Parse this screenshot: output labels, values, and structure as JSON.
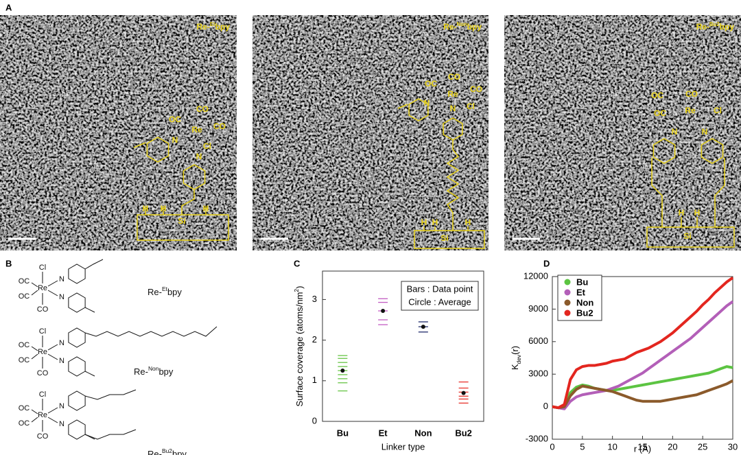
{
  "panel_labels": [
    "A",
    "B",
    "C",
    "D"
  ],
  "images": [
    {
      "name": {
        "prefix": "Re-",
        "sup": "Et",
        "suffix": "bpy"
      },
      "atoms": [
        "CO",
        "OC",
        "Re",
        "CO",
        "N",
        "Cl",
        "N",
        "H",
        "H",
        "H",
        "Si"
      ]
    },
    {
      "name": {
        "prefix": "Re-",
        "sup": "Non",
        "suffix": "bpy"
      },
      "atoms": [
        "CO",
        "OC",
        "Re",
        "CO",
        "N",
        "N",
        "Cl",
        "H",
        "H",
        "H",
        "Si"
      ]
    },
    {
      "name": {
        "prefix": "Re-",
        "sup": "Bu2",
        "suffix": "bpy"
      },
      "atoms": [
        "OC",
        "CO",
        "OC",
        "Re",
        "Cl",
        "N",
        "N",
        "H",
        "H",
        "Si"
      ]
    }
  ],
  "structures": [
    {
      "name": {
        "prefix": "Re-",
        "sup": "Et",
        "suffix": "bpy"
      },
      "atoms": [
        "Cl",
        "OC",
        "Re",
        "OC",
        "N",
        "N",
        "CO"
      ]
    },
    {
      "name": {
        "prefix": "Re-",
        "sup": "Non",
        "suffix": "bpy"
      },
      "atoms": [
        "Cl",
        "OC",
        "Re",
        "OC",
        "N",
        "N",
        "CO"
      ]
    },
    {
      "name": {
        "prefix": "Re-",
        "sup": "Bu2",
        "suffix": "bpy"
      },
      "atoms": [
        "Cl",
        "OC",
        "Re",
        "OC",
        "N",
        "N",
        "CO"
      ]
    }
  ],
  "chart_data": [
    {
      "type": "strip",
      "categories": [
        "Bu",
        "Et",
        "Non",
        "Bu2"
      ],
      "colors": [
        "#66c444",
        "#c25bc2",
        "#1f2a6b",
        "#e8322b"
      ],
      "data_points": [
        [
          0.75,
          0.95,
          1.05,
          1.15,
          1.25,
          1.35,
          1.45,
          1.55,
          1.62
        ],
        [
          2.38,
          2.5,
          2.72,
          2.93,
          3.02
        ],
        [
          2.2,
          2.33,
          2.45
        ],
        [
          0.45,
          0.55,
          0.62,
          0.72,
          0.82,
          0.97
        ]
      ],
      "averages": [
        1.25,
        2.72,
        2.33,
        0.7
      ],
      "ylim": [
        0,
        3.7
      ],
      "yticks": [
        0,
        1,
        2,
        3
      ],
      "ylabel": {
        "main": "Surface coverage (atoms/nm",
        "sup": "2",
        "rest": ")"
      },
      "xlabel": "Linker type",
      "legend_text": [
        "Bars : Data point",
        "Circle : Average"
      ]
    },
    {
      "type": "line",
      "x": [
        0,
        1,
        2,
        3,
        4,
        5,
        6,
        7,
        8,
        9,
        10,
        11,
        12,
        13,
        14,
        15,
        16,
        17,
        18,
        19,
        20,
        21,
        22,
        23,
        24,
        25,
        26,
        27,
        28,
        29,
        30
      ],
      "series": [
        {
          "name": "Bu",
          "color": "#5cc442",
          "values": [
            0,
            -100,
            100,
            1300,
            1800,
            2000,
            1900,
            1700,
            1600,
            1500,
            1500,
            1600,
            1700,
            1800,
            1900,
            2000,
            2100,
            2200,
            2300,
            2400,
            2500,
            2600,
            2700,
            2800,
            2900,
            3000,
            3100,
            3300,
            3500,
            3700,
            3600
          ]
        },
        {
          "name": "Et",
          "color": "#b35fb8",
          "values": [
            0,
            -100,
            -200,
            500,
            900,
            1100,
            1200,
            1300,
            1400,
            1500,
            1700,
            1900,
            2200,
            2500,
            2800,
            3100,
            3500,
            3900,
            4300,
            4700,
            5100,
            5500,
            5900,
            6300,
            6800,
            7300,
            7800,
            8300,
            8800,
            9300,
            9700
          ]
        },
        {
          "name": "Non",
          "color": "#8b5a2b",
          "values": [
            0,
            -100,
            0,
            1000,
            1600,
            1900,
            1800,
            1700,
            1600,
            1500,
            1400,
            1200,
            1000,
            800,
            600,
            500,
            500,
            500,
            500,
            600,
            700,
            800,
            900,
            1000,
            1100,
            1300,
            1500,
            1700,
            1900,
            2100,
            2400
          ]
        },
        {
          "name": "Bu2",
          "color": "#e3261f",
          "values": [
            0,
            -100,
            200,
            2500,
            3400,
            3700,
            3800,
            3800,
            3900,
            4000,
            4200,
            4300,
            4400,
            4700,
            5000,
            5200,
            5400,
            5700,
            6000,
            6400,
            6800,
            7300,
            7800,
            8300,
            8800,
            9400,
            9900,
            10500,
            11000,
            11500,
            11900
          ]
        }
      ],
      "xlim": [
        0,
        30
      ],
      "xticks": [
        0,
        5,
        10,
        15,
        20,
        25,
        30
      ],
      "ylim": [
        -3000,
        12000
      ],
      "yticks": [
        -3000,
        0,
        3000,
        6000,
        9000,
        12000
      ],
      "ylabel": {
        "main": "K",
        "sub": "dev",
        "rest": "(r)"
      },
      "xlabel": "r (Å)"
    }
  ]
}
